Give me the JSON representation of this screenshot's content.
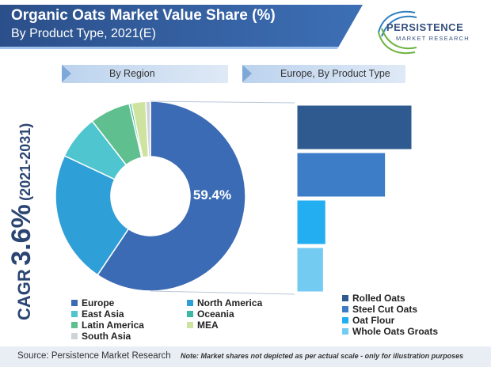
{
  "header": {
    "title_line1": "Organic Oats Market Value Share (%)",
    "title_line2": "By Product Type, 2021(E)"
  },
  "logo": {
    "name": "PERSISTENCE",
    "tagline": "MARKET RESEARCH"
  },
  "tabs": {
    "left": "By Region",
    "right": "Europe, By Product Type"
  },
  "cagr": {
    "prefix": "CAGR",
    "value": "3.6%",
    "period": "(2021-2031)"
  },
  "footer": {
    "source": "Source: Persistence Market Research",
    "note": "Note: Market shares not depicted as per actual scale - only for illustration purposes"
  },
  "colors": {
    "europe": "#3b6bb4",
    "north_america": "#2f9fd7",
    "east_asia": "#4ec5cf",
    "oceania": "#3cb7a1",
    "latin_america": "#5fbf8e",
    "mea": "#cfe3a0",
    "south_asia": "#cfd3d8",
    "rolled_oats": "#2e5a8f",
    "steel_cut_oats": "#3d7cc7",
    "oat_flour": "#22aef0",
    "whole_oats_groats": "#74cbf2"
  },
  "chart_data": [
    {
      "type": "pie",
      "title": "By Region",
      "categories": [
        "Europe",
        "North America",
        "East Asia",
        "Latin America",
        "Oceania",
        "MEA",
        "South Asia"
      ],
      "values": [
        59.4,
        22.6,
        7.5,
        6.9,
        0.4,
        2.4,
        0.8
      ],
      "labels": [
        "59.4%",
        "",
        "",
        "",
        "",
        "",
        ""
      ],
      "legend": [
        "Europe",
        "North America",
        "East Asia",
        "Oceania",
        "Latin America",
        "MEA",
        "South Asia"
      ]
    },
    {
      "type": "bar",
      "title": "Europe, By Product Type",
      "categories": [
        "Rolled Oats",
        "Steel Cut Oats",
        "Oat Flour",
        "Whole Oats Groats"
      ],
      "values": [
        100,
        77,
        25,
        23
      ]
    }
  ]
}
